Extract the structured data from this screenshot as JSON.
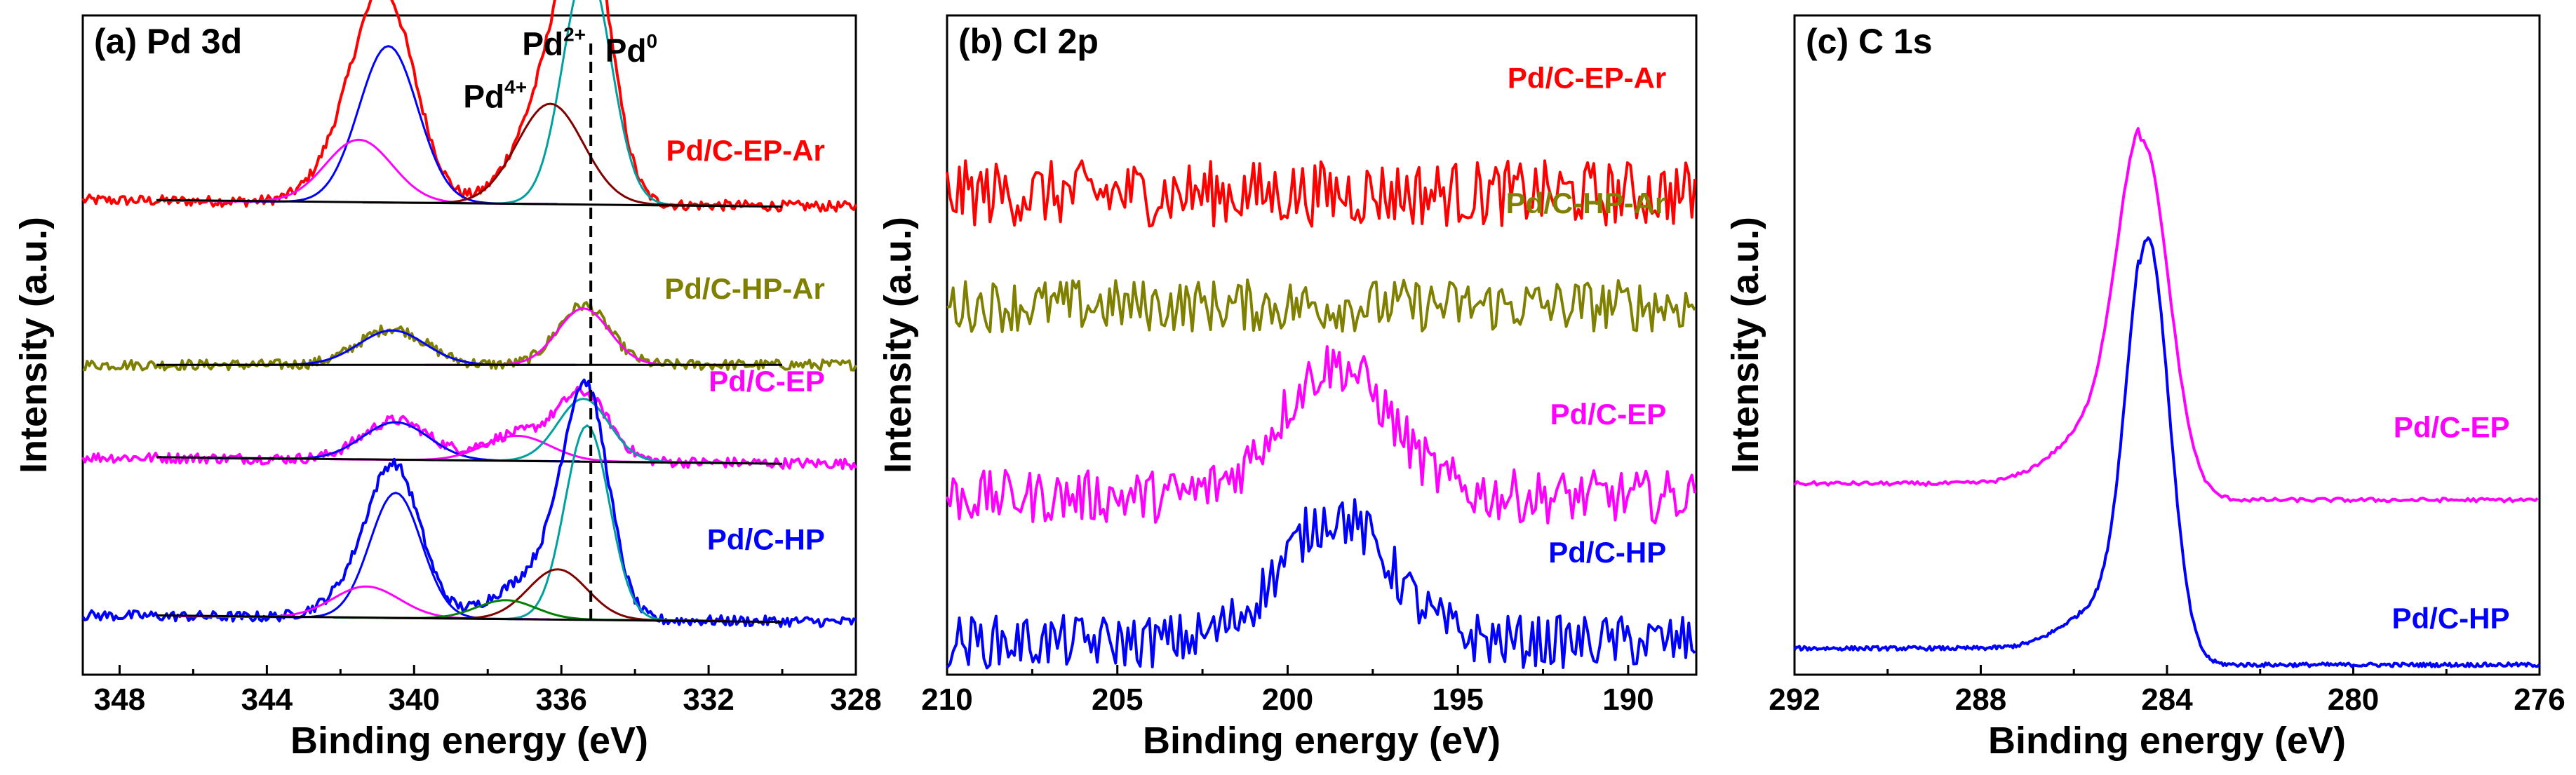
{
  "chart_data": [
    {
      "type": "line",
      "title": "(a) Pd 3d",
      "xlabel": "Binding energy (eV)",
      "ylabel": "Intensity (a.u.)",
      "xlim": [
        349,
        328
      ],
      "xticks": [
        "348",
        "344",
        "340",
        "336",
        "332",
        "328"
      ],
      "reference_line": 335.2,
      "annotations": [
        {
          "base": "Pd",
          "sup": "4+",
          "x": 337.8
        },
        {
          "base": "Pd",
          "sup": "2+",
          "x": 336.2
        },
        {
          "base": "Pd",
          "sup": "0",
          "x": 334.1
        }
      ],
      "series": [
        {
          "name": "Pd/C-EP-Ar",
          "color": "#ff0000",
          "offset": 0.72,
          "start": 349,
          "end": 328,
          "bgEnd": -0.01,
          "peaks": [
            {
              "c": 340.7,
              "a": 0.25,
              "w": 0.8
            },
            {
              "c": 341.5,
              "a": 0.1,
              "w": 0.9
            },
            {
              "c": 335.3,
              "a": 0.38,
              "w": 0.65
            },
            {
              "c": 336.3,
              "a": 0.16,
              "w": 0.9
            }
          ]
        },
        {
          "name": "Pd/C-HP-Ar",
          "color": "#808000",
          "offset": 0.47,
          "start": 349,
          "end": 328,
          "bgEnd": 0,
          "peaks": [
            {
              "c": 340.6,
              "a": 0.055,
              "w": 0.9
            },
            {
              "c": 335.4,
              "a": 0.09,
              "w": 0.7
            }
          ]
        },
        {
          "name": "Pd/C-EP",
          "color": "#ff00ff",
          "offset": 0.33,
          "start": 349,
          "end": 328,
          "bgEnd": -0.01,
          "peaks": [
            {
              "c": 340.5,
              "a": 0.06,
              "w": 0.9
            },
            {
              "c": 337.2,
              "a": 0.04,
              "w": 0.9
            },
            {
              "c": 335.4,
              "a": 0.1,
              "w": 0.7
            }
          ]
        },
        {
          "name": "Pd/C-HP",
          "color": "#0000ff",
          "offset": 0.09,
          "start": 349,
          "end": 328,
          "bgEnd": -0.01,
          "peaks": [
            {
              "c": 340.5,
              "a": 0.2,
              "w": 0.7
            },
            {
              "c": 341.3,
              "a": 0.05,
              "w": 0.9
            },
            {
              "c": 335.3,
              "a": 0.31,
              "w": 0.6
            },
            {
              "c": 336.1,
              "a": 0.08,
              "w": 0.8
            },
            {
              "c": 337.5,
              "a": 0.03,
              "w": 0.8
            }
          ]
        }
      ]
    },
    {
      "type": "line",
      "title": "(b) Cl 2p",
      "xlabel": "Binding energy (eV)",
      "ylabel": "Intensity (a.u.)",
      "xlim": [
        210,
        188
      ],
      "xticks": [
        "210",
        "205",
        "200",
        "195",
        "190"
      ],
      "series": [
        {
          "name": "Pd/C-EP-Ar",
          "color": "#ff0000",
          "offset": 0.73,
          "noise": 0.05,
          "peaks": []
        },
        {
          "name": "Pd/C-HP-Ar",
          "color": "#808000",
          "offset": 0.56,
          "noise": 0.04,
          "peaks": []
        },
        {
          "name": "Pd/C-EP",
          "color": "#ff00ff",
          "offset": 0.27,
          "noise": 0.04,
          "peaks": [
            {
              "c": 198.6,
              "a": 0.2,
              "w": 1.6
            }
          ]
        },
        {
          "name": "Pd/C-HP",
          "color": "#0000ff",
          "offset": 0.05,
          "noise": 0.04,
          "peaks": [
            {
              "c": 198.6,
              "a": 0.19,
              "w": 1.6
            }
          ]
        }
      ]
    },
    {
      "type": "line",
      "title": "(c) C 1s",
      "xlabel": "Binding energy (eV)",
      "ylabel": "Intensity (a.u.)",
      "xlim": [
        292,
        276
      ],
      "xticks": [
        "292",
        "288",
        "284",
        "280",
        "276"
      ],
      "series": [
        {
          "name": "Pd/C-EP",
          "color": "#ff00ff",
          "offset": 0.27,
          "step": 0.06,
          "noise": 0.003,
          "peaks": [
            {
              "c": 284.5,
              "a": 0.5,
              "w": 0.55
            },
            {
              "c": 285.5,
              "a": 0.08,
              "w": 0.9
            }
          ]
        },
        {
          "name": "Pd/C-HP",
          "color": "#0000ff",
          "offset": 0.02,
          "step": 0.035,
          "noise": 0.003,
          "peaks": [
            {
              "c": 284.4,
              "a": 0.62,
              "w": 0.45
            },
            {
              "c": 285.4,
              "a": 0.06,
              "w": 0.8
            }
          ]
        }
      ]
    }
  ]
}
